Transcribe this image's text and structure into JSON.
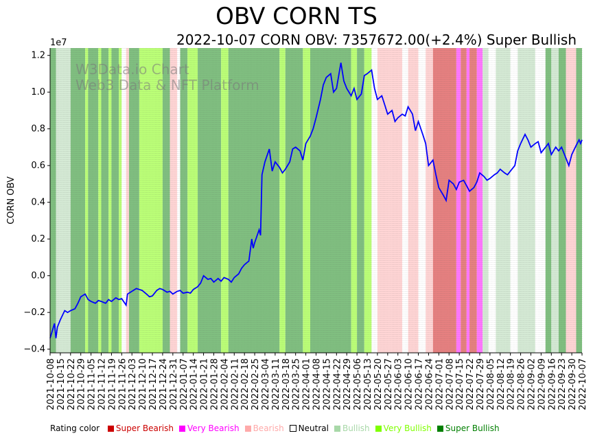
{
  "title": "OBV CORN TS",
  "subtitle": "2022-10-07 CORN OBV: 7357672.00(+2.4%) Super Bullish",
  "watermark": [
    "W3Data.io Chart",
    "Web3 Data & NFT Platform"
  ],
  "legend": {
    "label": "Rating color",
    "items": [
      {
        "name": "Super Bearish",
        "color": "#cc0000",
        "text_color": "#cc0000"
      },
      {
        "name": "Very Bearish",
        "color": "#ff00ff",
        "text_color": "#ff00ff"
      },
      {
        "name": "Bearish",
        "color": "#ffaaaa",
        "text_color": "#ffaaaa"
      },
      {
        "name": "Neutral",
        "color": "#ffffff",
        "text_color": "#000000"
      },
      {
        "name": "Bullish",
        "color": "#a8d8a8",
        "text_color": "#a8d8a8"
      },
      {
        "name": "Very Bullish",
        "color": "#7fff00",
        "text_color": "#7fff00"
      },
      {
        "name": "Super Bullish",
        "color": "#007f00",
        "text_color": "#007f00"
      }
    ]
  },
  "chart_data": {
    "type": "line",
    "title": "OBV CORN TS",
    "subtitle": "2022-10-07 CORN OBV: 7357672.00(+2.4%) Super Bullish",
    "ylabel": "CORN OBV",
    "xlabel": "",
    "y_multiplier_label": "1e7",
    "ylim": [
      -0.42,
      1.24
    ],
    "yticks": [
      -0.4,
      -0.2,
      0.0,
      0.2,
      0.4,
      0.6,
      0.8,
      1.0,
      1.2
    ],
    "ytick_labels": [
      "−0.4",
      "−0.2",
      "0.0",
      "0.2",
      "0.4",
      "0.6",
      "0.8",
      "1.0",
      "1.2"
    ],
    "xlim": [
      "2021-10-08",
      "2022-10-07"
    ],
    "xtick_labels": [
      "2021-10-08",
      "2021-10-15",
      "2021-10-22",
      "2021-10-29",
      "2021-11-05",
      "2021-11-12",
      "2021-11-19",
      "2021-11-26",
      "2021-12-03",
      "2021-12-10",
      "2021-12-17",
      "2021-12-24",
      "2021-12-31",
      "2022-01-07",
      "2022-01-14",
      "2022-01-21",
      "2022-01-28",
      "2022-02-04",
      "2022-02-11",
      "2022-02-18",
      "2022-02-25",
      "2022-03-04",
      "2022-03-11",
      "2022-03-18",
      "2022-03-25",
      "2022-04-01",
      "2022-04-08",
      "2022-04-15",
      "2022-04-22",
      "2022-04-29",
      "2022-05-06",
      "2022-05-13",
      "2022-05-20",
      "2022-05-27",
      "2022-06-03",
      "2022-06-10",
      "2022-06-17",
      "2022-06-24",
      "2022-07-01",
      "2022-07-08",
      "2022-07-15",
      "2022-07-22",
      "2022-07-29",
      "2022-08-05",
      "2022-08-12",
      "2022-08-19",
      "2022-08-26",
      "2022-09-02",
      "2022-09-09",
      "2022-09-16",
      "2022-09-23",
      "2022-09-30",
      "2022-10-07"
    ],
    "grid": "vertical dotted",
    "legend_position": "bottom",
    "series": [
      {
        "color": "#0000ff",
        "points": [
          [
            "2021-10-08",
            -0.34
          ],
          [
            "2021-10-11",
            -0.26
          ],
          [
            "2021-10-12",
            -0.34
          ],
          [
            "2021-10-13",
            -0.28
          ],
          [
            "2021-10-15",
            -0.24
          ],
          [
            "2021-10-18",
            -0.19
          ],
          [
            "2021-10-20",
            -0.2
          ],
          [
            "2021-10-22",
            -0.19
          ],
          [
            "2021-10-25",
            -0.18
          ],
          [
            "2021-10-27",
            -0.15
          ],
          [
            "2021-10-29",
            -0.115
          ],
          [
            "2021-11-01",
            -0.1
          ],
          [
            "2021-11-03",
            -0.13
          ],
          [
            "2021-11-05",
            -0.14
          ],
          [
            "2021-11-08",
            -0.15
          ],
          [
            "2021-11-10",
            -0.135
          ],
          [
            "2021-11-12",
            -0.14
          ],
          [
            "2021-11-15",
            -0.15
          ],
          [
            "2021-11-17",
            -0.13
          ],
          [
            "2021-11-19",
            -0.14
          ],
          [
            "2021-11-22",
            -0.12
          ],
          [
            "2021-11-24",
            -0.13
          ],
          [
            "2021-11-26",
            -0.125
          ],
          [
            "2021-11-29",
            -0.16
          ],
          [
            "2021-11-30",
            -0.1
          ],
          [
            "2021-12-03",
            -0.085
          ],
          [
            "2021-12-06",
            -0.07
          ],
          [
            "2021-12-08",
            -0.075
          ],
          [
            "2021-12-10",
            -0.08
          ],
          [
            "2021-12-13",
            -0.1
          ],
          [
            "2021-12-15",
            -0.115
          ],
          [
            "2021-12-17",
            -0.11
          ],
          [
            "2021-12-20",
            -0.08
          ],
          [
            "2021-12-22",
            -0.07
          ],
          [
            "2021-12-24",
            -0.075
          ],
          [
            "2021-12-27",
            -0.09
          ],
          [
            "2021-12-29",
            -0.085
          ],
          [
            "2021-12-31",
            -0.1
          ],
          [
            "2022-01-03",
            -0.085
          ],
          [
            "2022-01-05",
            -0.08
          ],
          [
            "2022-01-07",
            -0.095
          ],
          [
            "2022-01-10",
            -0.09
          ],
          [
            "2022-01-12",
            -0.095
          ],
          [
            "2022-01-14",
            -0.075
          ],
          [
            "2022-01-17",
            -0.06
          ],
          [
            "2022-01-19",
            -0.04
          ],
          [
            "2022-01-21",
            0.0
          ],
          [
            "2022-01-24",
            -0.02
          ],
          [
            "2022-01-26",
            -0.015
          ],
          [
            "2022-01-28",
            -0.035
          ],
          [
            "2022-01-31",
            -0.015
          ],
          [
            "2022-02-02",
            -0.03
          ],
          [
            "2022-02-04",
            -0.01
          ],
          [
            "2022-02-07",
            -0.02
          ],
          [
            "2022-02-09",
            -0.035
          ],
          [
            "2022-02-11",
            -0.01
          ],
          [
            "2022-02-14",
            0.01
          ],
          [
            "2022-02-16",
            0.04
          ],
          [
            "2022-02-18",
            0.06
          ],
          [
            "2022-02-21",
            0.08
          ],
          [
            "2022-02-23",
            0.2
          ],
          [
            "2022-02-24",
            0.15
          ],
          [
            "2022-02-25",
            0.18
          ],
          [
            "2022-02-28",
            0.25
          ],
          [
            "2022-03-01",
            0.22
          ],
          [
            "2022-03-02",
            0.55
          ],
          [
            "2022-03-04",
            0.62
          ],
          [
            "2022-03-07",
            0.69
          ],
          [
            "2022-03-09",
            0.57
          ],
          [
            "2022-03-11",
            0.62
          ],
          [
            "2022-03-14",
            0.59
          ],
          [
            "2022-03-16",
            0.56
          ],
          [
            "2022-03-18",
            0.58
          ],
          [
            "2022-03-21",
            0.62
          ],
          [
            "2022-03-23",
            0.69
          ],
          [
            "2022-03-25",
            0.7
          ],
          [
            "2022-03-28",
            0.68
          ],
          [
            "2022-03-30",
            0.63
          ],
          [
            "2022-04-01",
            0.72
          ],
          [
            "2022-04-04",
            0.76
          ],
          [
            "2022-04-06",
            0.8
          ],
          [
            "2022-04-08",
            0.86
          ],
          [
            "2022-04-11",
            0.96
          ],
          [
            "2022-04-13",
            1.04
          ],
          [
            "2022-04-15",
            1.08
          ],
          [
            "2022-04-18",
            1.1
          ],
          [
            "2022-04-20",
            1.0
          ],
          [
            "2022-04-22",
            1.02
          ],
          [
            "2022-04-25",
            1.16
          ],
          [
            "2022-04-27",
            1.06
          ],
          [
            "2022-04-29",
            1.02
          ],
          [
            "2022-05-02",
            0.98
          ],
          [
            "2022-05-04",
            1.02
          ],
          [
            "2022-05-06",
            0.96
          ],
          [
            "2022-05-09",
            0.99
          ],
          [
            "2022-05-11",
            1.09
          ],
          [
            "2022-05-13",
            1.1
          ],
          [
            "2022-05-16",
            1.12
          ],
          [
            "2022-05-18",
            1.02
          ],
          [
            "2022-05-20",
            0.96
          ],
          [
            "2022-05-23",
            0.98
          ],
          [
            "2022-05-25",
            0.93
          ],
          [
            "2022-05-27",
            0.88
          ],
          [
            "2022-05-30",
            0.9
          ],
          [
            "2022-06-01",
            0.84
          ],
          [
            "2022-06-03",
            0.86
          ],
          [
            "2022-06-06",
            0.88
          ],
          [
            "2022-06-08",
            0.87
          ],
          [
            "2022-06-10",
            0.92
          ],
          [
            "2022-06-13",
            0.88
          ],
          [
            "2022-06-15",
            0.79
          ],
          [
            "2022-06-17",
            0.84
          ],
          [
            "2022-06-20",
            0.77
          ],
          [
            "2022-06-22",
            0.72
          ],
          [
            "2022-06-24",
            0.6
          ],
          [
            "2022-06-27",
            0.63
          ],
          [
            "2022-06-29",
            0.55
          ],
          [
            "2022-07-01",
            0.48
          ],
          [
            "2022-07-04",
            0.44
          ],
          [
            "2022-07-06",
            0.41
          ],
          [
            "2022-07-08",
            0.52
          ],
          [
            "2022-07-11",
            0.5
          ],
          [
            "2022-07-13",
            0.47
          ],
          [
            "2022-07-15",
            0.51
          ],
          [
            "2022-07-18",
            0.52
          ],
          [
            "2022-07-20",
            0.49
          ],
          [
            "2022-07-22",
            0.46
          ],
          [
            "2022-07-25",
            0.48
          ],
          [
            "2022-07-27",
            0.51
          ],
          [
            "2022-07-29",
            0.56
          ],
          [
            "2022-08-01",
            0.54
          ],
          [
            "2022-08-03",
            0.52
          ],
          [
            "2022-08-05",
            0.53
          ],
          [
            "2022-08-08",
            0.55
          ],
          [
            "2022-08-10",
            0.56
          ],
          [
            "2022-08-12",
            0.58
          ],
          [
            "2022-08-15",
            0.56
          ],
          [
            "2022-08-17",
            0.55
          ],
          [
            "2022-08-19",
            0.57
          ],
          [
            "2022-08-22",
            0.6
          ],
          [
            "2022-08-24",
            0.68
          ],
          [
            "2022-08-26",
            0.72
          ],
          [
            "2022-08-29",
            0.77
          ],
          [
            "2022-08-31",
            0.74
          ],
          [
            "2022-09-02",
            0.7
          ],
          [
            "2022-09-05",
            0.72
          ],
          [
            "2022-09-07",
            0.73
          ],
          [
            "2022-09-09",
            0.67
          ],
          [
            "2022-09-12",
            0.7
          ],
          [
            "2022-09-14",
            0.72
          ],
          [
            "2022-09-16",
            0.66
          ],
          [
            "2022-09-19",
            0.7
          ],
          [
            "2022-09-21",
            0.68
          ],
          [
            "2022-09-23",
            0.7
          ],
          [
            "2022-09-26",
            0.64
          ],
          [
            "2022-09-28",
            0.6
          ],
          [
            "2022-09-30",
            0.66
          ],
          [
            "2022-10-03",
            0.71
          ],
          [
            "2022-10-05",
            0.74
          ],
          [
            "2022-10-06",
            0.72
          ],
          [
            "2022-10-07",
            0.74
          ]
        ]
      }
    ],
    "rating_bands": [
      [
        "2021-10-08",
        "2021-10-12",
        "Super Bullish"
      ],
      [
        "2021-10-12",
        "2021-10-22",
        "Bullish"
      ],
      [
        "2021-10-22",
        "2021-11-01",
        "Super Bullish"
      ],
      [
        "2021-11-01",
        "2021-11-03",
        "Very Bullish"
      ],
      [
        "2021-11-03",
        "2021-11-10",
        "Super Bullish"
      ],
      [
        "2021-11-10",
        "2021-11-12",
        "Very Bullish"
      ],
      [
        "2021-11-12",
        "2021-11-17",
        "Super Bullish"
      ],
      [
        "2021-11-17",
        "2021-11-19",
        "Very Bullish"
      ],
      [
        "2021-11-19",
        "2021-11-24",
        "Super Bullish"
      ],
      [
        "2021-11-24",
        "2021-11-26",
        "Very Bullish"
      ],
      [
        "2021-11-26",
        "2021-11-29",
        "Neutral"
      ],
      [
        "2021-11-29",
        "2021-12-01",
        "Bearish"
      ],
      [
        "2021-12-01",
        "2021-12-08",
        "Super Bullish"
      ],
      [
        "2021-12-08",
        "2021-12-24",
        "Very Bullish"
      ],
      [
        "2021-12-24",
        "2021-12-29",
        "Super Bullish"
      ],
      [
        "2021-12-29",
        "2022-01-03",
        "Bearish"
      ],
      [
        "2022-01-03",
        "2022-01-05",
        "Neutral"
      ],
      [
        "2022-01-05",
        "2022-01-10",
        "Super Bullish"
      ],
      [
        "2022-01-10",
        "2022-01-17",
        "Very Bullish"
      ],
      [
        "2022-01-17",
        "2022-02-02",
        "Super Bullish"
      ],
      [
        "2022-02-02",
        "2022-02-07",
        "Very Bullish"
      ],
      [
        "2022-02-07",
        "2022-03-14",
        "Super Bullish"
      ],
      [
        "2022-03-14",
        "2022-03-18",
        "Very Bullish"
      ],
      [
        "2022-03-18",
        "2022-03-30",
        "Super Bullish"
      ],
      [
        "2022-03-30",
        "2022-04-04",
        "Very Bullish"
      ],
      [
        "2022-04-04",
        "2022-05-02",
        "Super Bullish"
      ],
      [
        "2022-05-02",
        "2022-05-06",
        "Very Bullish"
      ],
      [
        "2022-05-06",
        "2022-05-11",
        "Super Bullish"
      ],
      [
        "2022-05-11",
        "2022-05-16",
        "Very Bullish"
      ],
      [
        "2022-05-16",
        "2022-05-20",
        "Neutral"
      ],
      [
        "2022-05-20",
        "2022-06-06",
        "Bearish"
      ],
      [
        "2022-06-06",
        "2022-06-10",
        "Neutral"
      ],
      [
        "2022-06-10",
        "2022-06-17",
        "Bearish"
      ],
      [
        "2022-06-17",
        "2022-06-22",
        "Neutral"
      ],
      [
        "2022-06-22",
        "2022-06-27",
        "Bearish"
      ],
      [
        "2022-06-27",
        "2022-07-13",
        "Super Bearish"
      ],
      [
        "2022-07-13",
        "2022-07-16",
        "Very Bearish"
      ],
      [
        "2022-07-16",
        "2022-07-20",
        "Super Bearish"
      ],
      [
        "2022-07-20",
        "2022-07-22",
        "Very Bearish"
      ],
      [
        "2022-07-22",
        "2022-07-27",
        "Super Bearish"
      ],
      [
        "2022-07-27",
        "2022-07-31",
        "Very Bearish"
      ],
      [
        "2022-07-31",
        "2022-08-04",
        "Bullish"
      ],
      [
        "2022-08-04",
        "2022-08-09",
        "Neutral"
      ],
      [
        "2022-08-09",
        "2022-08-19",
        "Bullish"
      ],
      [
        "2022-08-19",
        "2022-08-24",
        "Neutral"
      ],
      [
        "2022-08-24",
        "2022-09-05",
        "Bullish"
      ],
      [
        "2022-09-05",
        "2022-09-12",
        "Neutral"
      ],
      [
        "2022-09-12",
        "2022-09-16",
        "Super Bullish"
      ],
      [
        "2022-09-16",
        "2022-09-21",
        "Bullish"
      ],
      [
        "2022-09-21",
        "2022-09-26",
        "Super Bullish"
      ],
      [
        "2022-09-26",
        "2022-10-03",
        "Bearish"
      ],
      [
        "2022-10-03",
        "2022-10-07",
        "Super Bullish"
      ]
    ]
  }
}
